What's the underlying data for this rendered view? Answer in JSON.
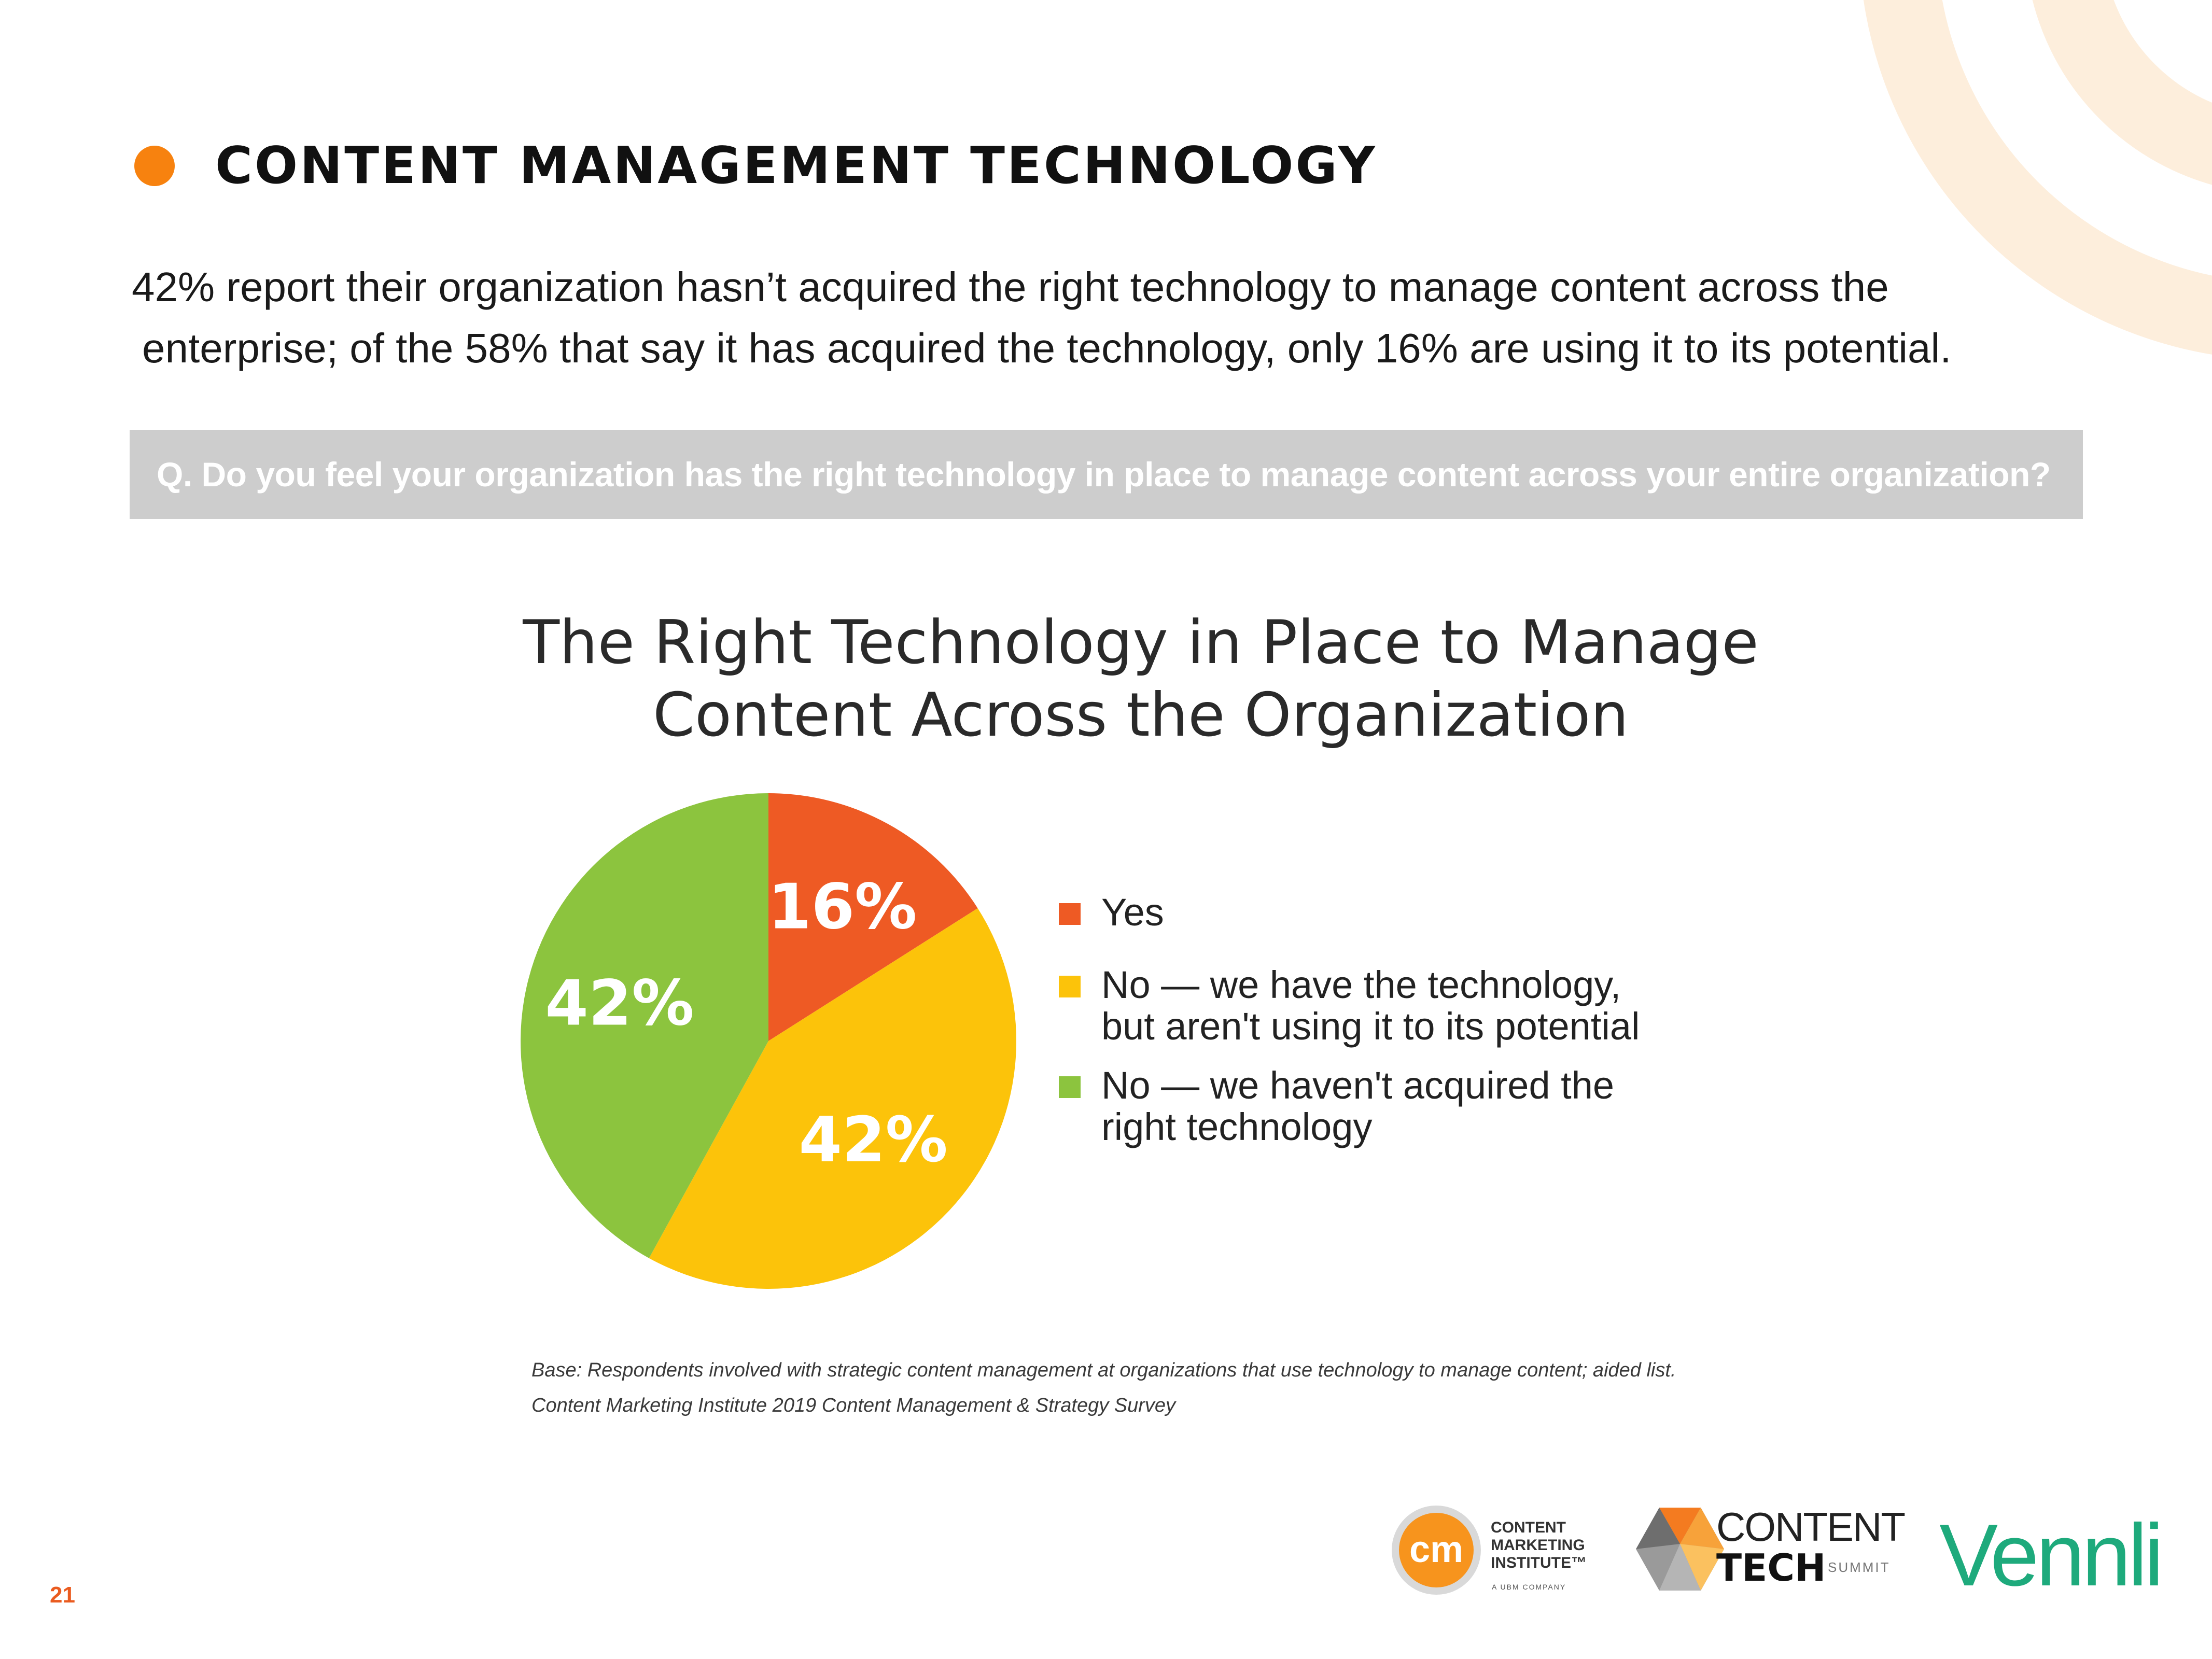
{
  "header": {
    "title": "CONTENT MANAGEMENT TECHNOLOGY",
    "accent_color": "#F7820F"
  },
  "summary": {
    "line1": "42% report their organization hasn’t acquired the right technology to manage content across the",
    "line2": "enterprise; of the 58% that say it has acquired the technology, only 16% are using it to its potential."
  },
  "question": "Q. Do you feel your organization has the right technology in place to manage content across your entire organization?",
  "chart_data": {
    "type": "pie",
    "title": "The Right Technology in Place to Manage Content Across the Organization",
    "title_lines": [
      "The Right Technology in Place to Manage",
      "Content Across the Organization"
    ],
    "unit": "%",
    "legend_position": "right",
    "slices": [
      {
        "label": "Yes",
        "legend_lines": [
          "Yes"
        ],
        "value": 16,
        "display": "16%",
        "color": "#EE5A24"
      },
      {
        "label": "No — we have the technology, but aren't using it to its potential",
        "legend_lines": [
          "No — we have the technology,",
          "but aren't using it to its potential"
        ],
        "value": 42,
        "display": "42%",
        "color": "#FCC30A"
      },
      {
        "label": "No — we haven't acquired the right technology",
        "legend_lines": [
          "No — we haven't acquired the",
          "right technology"
        ],
        "value": 42,
        "display": "42%",
        "color": "#8CC43E"
      }
    ]
  },
  "footnotes": {
    "base": "Base: Respondents involved with strategic content management at organizations that use technology to manage content; aided list.",
    "source": "Content Marketing Institute 2019 Content Management & Strategy Survey"
  },
  "page_number": "21",
  "logos": {
    "cmi": {
      "mark": "cm",
      "lines": [
        "CONTENT",
        "MARKETING",
        "INSTITUTE™"
      ],
      "tagline": "A UBM COMPANY"
    },
    "content_tech": {
      "word1": "CONTENT",
      "word2": "TECH",
      "word3": "SUMMIT"
    },
    "vennli": "Vennli"
  }
}
